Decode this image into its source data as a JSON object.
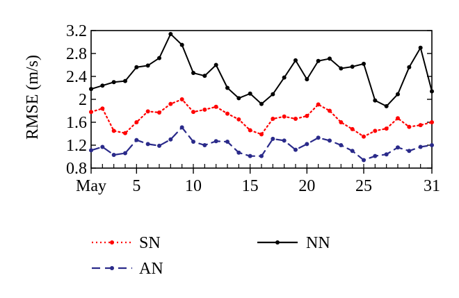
{
  "chart_data": {
    "type": "line",
    "title": "",
    "xlabel": "",
    "ylabel": "RMSE (m/s)",
    "x": [
      1,
      2,
      3,
      4,
      5,
      6,
      7,
      8,
      9,
      10,
      11,
      12,
      13,
      14,
      15,
      16,
      17,
      18,
      19,
      20,
      21,
      22,
      23,
      24,
      25,
      26,
      27,
      28,
      29,
      30,
      31
    ],
    "xticks": [
      1,
      5,
      10,
      15,
      20,
      25,
      31
    ],
    "xtick_labels": [
      "May",
      "5",
      "10",
      "15",
      "20",
      "25",
      "31"
    ],
    "xlim": [
      1,
      31
    ],
    "ylim": [
      0.8,
      3.2
    ],
    "yticks": [
      0.8,
      1.2,
      1.6,
      2,
      2.4,
      2.8,
      3.2
    ],
    "ytick_labels": [
      "0.8",
      "1.2",
      "1.6",
      "2",
      "2.4",
      "2.8",
      "3.2"
    ],
    "grid": false,
    "legend_position": "below",
    "series": [
      {
        "name": "SN",
        "color": "#ff0000",
        "line_style": "dotted",
        "marker": "circle",
        "values": [
          1.78,
          1.84,
          1.45,
          1.41,
          1.6,
          1.79,
          1.77,
          1.92,
          2.0,
          1.78,
          1.82,
          1.87,
          1.75,
          1.65,
          1.46,
          1.39,
          1.66,
          1.7,
          1.66,
          1.71,
          1.91,
          1.8,
          1.6,
          1.48,
          1.35,
          1.45,
          1.49,
          1.67,
          1.52,
          1.55,
          1.6
        ]
      },
      {
        "name": "AN",
        "color": "#2a2a8a",
        "line_style": "dashed",
        "marker": "circle",
        "values": [
          1.11,
          1.17,
          1.03,
          1.06,
          1.29,
          1.22,
          1.19,
          1.3,
          1.51,
          1.26,
          1.2,
          1.27,
          1.26,
          1.07,
          1.01,
          1.01,
          1.31,
          1.28,
          1.12,
          1.22,
          1.33,
          1.28,
          1.2,
          1.1,
          0.94,
          1.01,
          1.04,
          1.16,
          1.1,
          1.17,
          1.2
        ]
      },
      {
        "name": "NN",
        "color": "#000000",
        "line_style": "solid",
        "marker": "circle",
        "values": [
          2.18,
          2.24,
          2.3,
          2.32,
          2.56,
          2.59,
          2.72,
          3.14,
          2.95,
          2.46,
          2.41,
          2.6,
          2.2,
          2.02,
          2.1,
          1.92,
          2.09,
          2.38,
          2.68,
          2.35,
          2.67,
          2.71,
          2.54,
          2.57,
          2.62,
          1.98,
          1.88,
          2.09,
          2.56,
          2.9,
          2.14
        ]
      }
    ]
  }
}
